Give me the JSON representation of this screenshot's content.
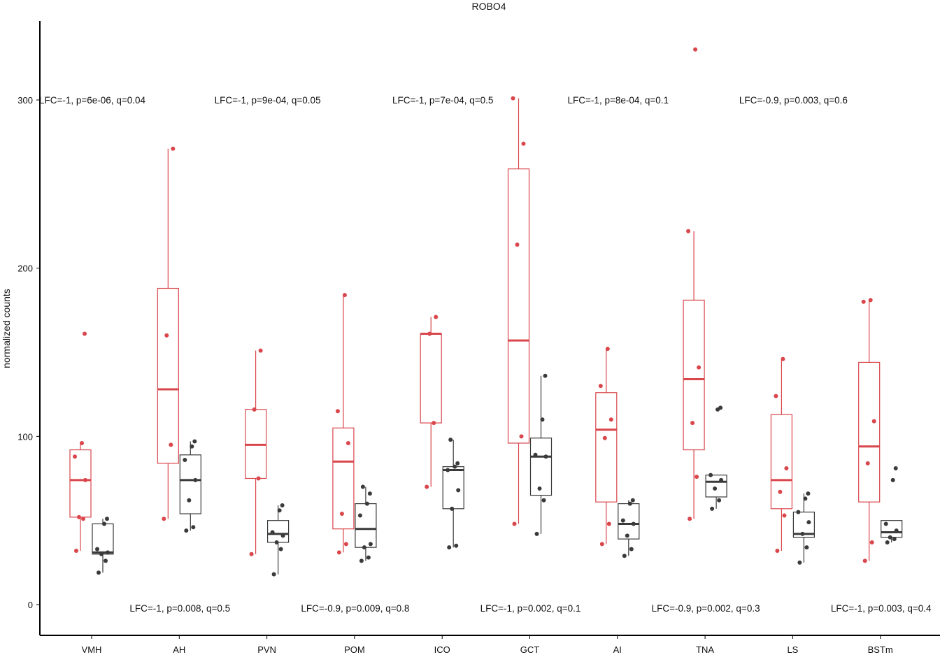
{
  "chart_data": {
    "type": "box",
    "title": "ROBO4",
    "xlabel": "",
    "ylabel": "normalized counts",
    "ylim": [
      -18,
      345
    ],
    "yticks": [
      0,
      100,
      200,
      300
    ],
    "grid": false,
    "legend": "none",
    "colors": {
      "group1": "#d9464b",
      "group2": "#3a3a3a",
      "axis": "#000000"
    },
    "categories": [
      "VMH",
      "AH",
      "PVN",
      "POM",
      "ICO",
      "GCT",
      "AI",
      "TNA",
      "LS",
      "BSTm"
    ],
    "series": [
      {
        "color": "#d9464b",
        "boxes": [
          {
            "min": 32,
            "q1": 52,
            "median": 74,
            "q3": 92,
            "max": 96,
            "points": [
              32,
              51,
              52,
              74,
              88,
              96,
              161
            ]
          },
          {
            "min": 51,
            "q1": 84,
            "median": 128,
            "q3": 188,
            "max": 271,
            "points": [
              51,
              95,
              160,
              271
            ]
          },
          {
            "min": 30,
            "q1": 75,
            "median": 95,
            "q3": 116,
            "max": 151,
            "points": [
              30,
              75,
              116,
              151
            ]
          },
          {
            "min": 31,
            "q1": 45,
            "median": 85,
            "q3": 105,
            "max": 184,
            "points": [
              31,
              36,
              54,
              96,
              115,
              184
            ]
          },
          {
            "min": 70,
            "q1": 108,
            "median": 161,
            "q3": 161,
            "max": 171,
            "points": [
              70,
              108,
              161,
              171
            ]
          },
          {
            "min": 48,
            "q1": 96,
            "median": 157,
            "q3": 259,
            "max": 301,
            "points": [
              48,
              100,
              214,
              274,
              301
            ]
          },
          {
            "min": 36,
            "q1": 61,
            "median": 104,
            "q3": 126,
            "max": 152,
            "points": [
              36,
              48,
              99,
              110,
              130,
              152
            ]
          },
          {
            "min": 51,
            "q1": 92,
            "median": 134,
            "q3": 181,
            "max": 222,
            "points": [
              51,
              76,
              108,
              141,
              222,
              330
            ]
          },
          {
            "min": 32,
            "q1": 57,
            "median": 74,
            "q3": 113,
            "max": 146,
            "points": [
              32,
              53,
              67,
              81,
              124,
              146
            ]
          },
          {
            "min": 26,
            "q1": 61,
            "median": 94,
            "q3": 144,
            "max": 181,
            "points": [
              26,
              37,
              84,
              109,
              180,
              181
            ]
          }
        ]
      },
      {
        "color": "#3a3a3a",
        "boxes": [
          {
            "min": 19,
            "q1": 30,
            "median": 31,
            "q3": 48,
            "max": 51,
            "points": [
              19,
              26,
              30,
              31,
              33,
              48,
              51
            ]
          },
          {
            "min": 44,
            "q1": 54,
            "median": 74,
            "q3": 89,
            "max": 97,
            "points": [
              44,
              46,
              62,
              74,
              86,
              94,
              97
            ]
          },
          {
            "min": 18,
            "q1": 37,
            "median": 42,
            "q3": 50,
            "max": 59,
            "points": [
              18,
              33,
              37,
              41,
              43,
              56,
              59
            ]
          },
          {
            "min": 26,
            "q1": 34,
            "median": 45,
            "q3": 60,
            "max": 70,
            "points": [
              26,
              28,
              34,
              36,
              53,
              60,
              66,
              70
            ]
          },
          {
            "min": 34,
            "q1": 57,
            "median": 80,
            "q3": 82,
            "max": 98,
            "points": [
              34,
              35,
              57,
              68,
              80,
              82,
              84,
              98
            ]
          },
          {
            "min": 42,
            "q1": 65,
            "median": 88,
            "q3": 99,
            "max": 136,
            "points": [
              42,
              62,
              69,
              88,
              89,
              110,
              136
            ]
          },
          {
            "min": 29,
            "q1": 39,
            "median": 48,
            "q3": 60,
            "max": 62,
            "points": [
              29,
              33,
              41,
              48,
              50,
              60,
              62
            ]
          },
          {
            "min": 57,
            "q1": 64,
            "median": 73,
            "q3": 77,
            "max": 77,
            "points": [
              57,
              62,
              69,
              74,
              77,
              116,
              117
            ]
          },
          {
            "min": 25,
            "q1": 40,
            "median": 42,
            "q3": 55,
            "max": 66,
            "points": [
              25,
              34,
              42,
              49,
              55,
              63,
              66
            ]
          },
          {
            "min": 37,
            "q1": 40,
            "median": 43,
            "q3": 50,
            "max": 50,
            "points": [
              37,
              39,
              40,
              44,
              48,
              74,
              81
            ]
          }
        ]
      }
    ],
    "annotations": [
      {
        "text": "LFC=-1, p=6e-06, q=0.04",
        "category": "VMH",
        "row": "top"
      },
      {
        "text": "LFC=-1, p=0.008, q=0.5",
        "category": "AH",
        "row": "bottom"
      },
      {
        "text": "LFC=-1, p=9e-04, q=0.05",
        "category": "PVN",
        "row": "top"
      },
      {
        "text": "LFC=-0.9, p=0.009, q=0.8",
        "category": "POM",
        "row": "bottom"
      },
      {
        "text": "LFC=-1, p=7e-04, q=0.5",
        "category": "ICO",
        "row": "top"
      },
      {
        "text": "LFC=-1, p=0.002, q=0.1",
        "category": "GCT",
        "row": "bottom"
      },
      {
        "text": "LFC=-1, p=8e-04, q=0.1",
        "category": "AI",
        "row": "top"
      },
      {
        "text": "LFC=-0.9, p=0.002, q=0.3",
        "category": "TNA",
        "row": "bottom"
      },
      {
        "text": "LFC=-0.9, p=0.003, q=0.6",
        "category": "LS",
        "row": "top"
      },
      {
        "text": "LFC=-1, p=0.003, q=0.4",
        "category": "BSTm",
        "row": "bottom"
      }
    ]
  }
}
